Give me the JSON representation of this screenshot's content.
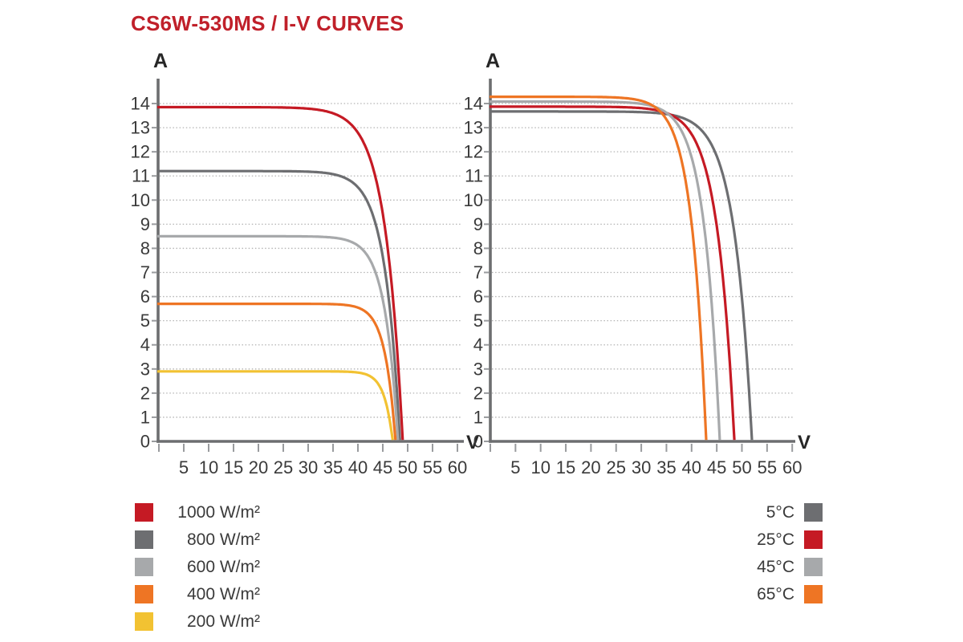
{
  "page": {
    "title": "CS6W-530MS / I-V CURVES"
  },
  "colors": {
    "title": "#c0202a",
    "red": "#c51a24",
    "dark_gray": "#6d6e71",
    "light_gray": "#a7a9ab",
    "orange": "#ee7524",
    "yellow": "#f2c232",
    "axis": "#6d6e70",
    "grid": "#b3b3b3",
    "tick": "#999b9e",
    "label_text": "#3a3a3a",
    "axis_letter": "#262626"
  },
  "chart_data": [
    {
      "type": "line",
      "id": "iv-vs-irradiance",
      "xlabel": "V",
      "ylabel": "A",
      "x_ticks": [
        5,
        10,
        15,
        20,
        25,
        30,
        35,
        40,
        45,
        50,
        55,
        60
      ],
      "y_ticks": [
        0,
        1,
        2,
        3,
        4,
        5,
        6,
        7,
        8,
        9,
        10,
        11,
        12,
        13,
        14
      ],
      "xlim": [
        0,
        61
      ],
      "ylim": [
        0,
        15
      ],
      "grid": "horizontal-dotted",
      "legend_position": "bottom-left",
      "curve_model": "I(V) = Isc * (1 - exp((V - Voc)/knee)), I clipped at 0",
      "series": [
        {
          "name": "1000 W/m²",
          "color": "red",
          "isc_a": 13.85,
          "voc_v": 49.0,
          "knee_v": 3.5
        },
        {
          "name": "800 W/m²",
          "color": "dark_gray",
          "isc_a": 11.2,
          "voc_v": 48.45,
          "knee_v": 3.0
        },
        {
          "name": "600 W/m²",
          "color": "light_gray",
          "isc_a": 8.5,
          "voc_v": 48.05,
          "knee_v": 2.6
        },
        {
          "name": "400 W/m²",
          "color": "orange",
          "isc_a": 5.7,
          "voc_v": 47.55,
          "knee_v": 2.1
        },
        {
          "name": "200 W/m²",
          "color": "yellow",
          "isc_a": 2.9,
          "voc_v": 47.0,
          "knee_v": 1.7
        }
      ]
    },
    {
      "type": "line",
      "id": "iv-vs-temperature",
      "xlabel": "V",
      "ylabel": "A",
      "x_ticks": [
        5,
        10,
        15,
        20,
        25,
        30,
        35,
        40,
        45,
        50,
        55,
        60
      ],
      "y_ticks": [
        0,
        1,
        2,
        3,
        4,
        5,
        6,
        7,
        8,
        9,
        10,
        11,
        12,
        13,
        14
      ],
      "xlim": [
        0,
        61
      ],
      "ylim": [
        0,
        15
      ],
      "grid": "horizontal-dotted",
      "legend_position": "bottom-right",
      "curve_model": "I(V) = Isc * (1 - exp((V - Voc)/knee)), I clipped at 0",
      "series": [
        {
          "name": "5°C",
          "color": "dark_gray",
          "isc_a": 13.67,
          "voc_v": 52.0,
          "knee_v": 3.5
        },
        {
          "name": "25°C",
          "color": "red",
          "isc_a": 13.87,
          "voc_v": 48.5,
          "knee_v": 3.4
        },
        {
          "name": "45°C",
          "color": "light_gray",
          "isc_a": 14.08,
          "voc_v": 45.6,
          "knee_v": 3.1
        },
        {
          "name": "65°C",
          "color": "orange",
          "isc_a": 14.28,
          "voc_v": 42.9,
          "knee_v": 2.9
        }
      ]
    }
  ]
}
